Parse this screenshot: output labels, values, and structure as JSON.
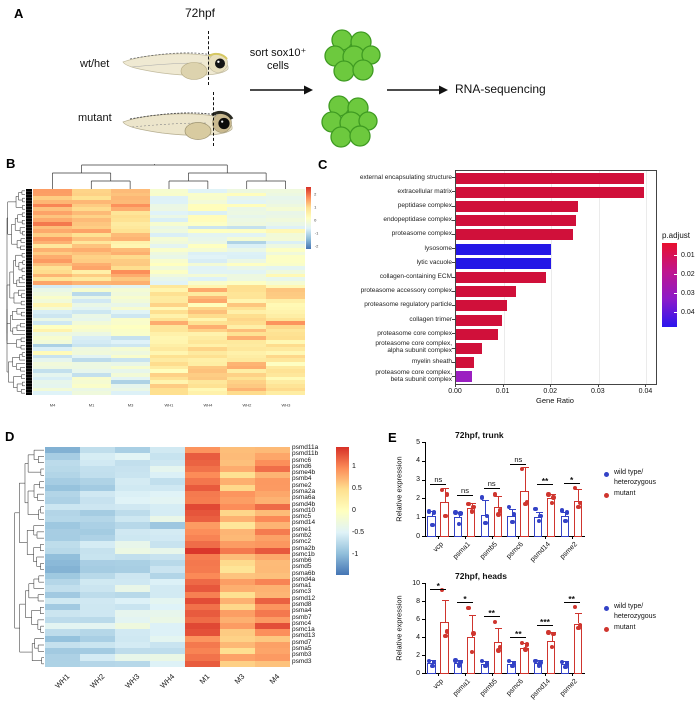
{
  "panelA": {
    "label": "A",
    "timepoint": "72hpf",
    "fish1_label": "wt/het",
    "fish2_label": "mutant",
    "sort_line1": "sort sox10⁺",
    "sort_line2": "cells",
    "rnaseq_label": "RNA-sequencing"
  },
  "panelB": {
    "label": "B",
    "columns": [
      "M4",
      "M1",
      "M3",
      "WH1",
      "WH4",
      "WH2",
      "WH3"
    ],
    "colorbar_ticks": [
      "2",
      "1",
      "0",
      "-1",
      "-2"
    ],
    "tree": [
      [
        0,
        [
          1,
          2
        ]
      ],
      [
        [
          3,
          4
        ],
        [
          5,
          6
        ]
      ]
    ],
    "heatmap": {
      "rows": 56,
      "seed": 11,
      "domain": [
        -2,
        2
      ],
      "blocks": [
        {
          "rows": [
            0,
            25
          ],
          "col_means": [
            0.95,
            0.85,
            0.8,
            -0.35,
            -0.3,
            -0.35,
            -0.3
          ],
          "sd": 0.45
        },
        {
          "rows": [
            26,
            55
          ],
          "col_means": [
            -0.4,
            -0.45,
            -0.4,
            0.5,
            0.6,
            0.55,
            0.5
          ],
          "sd": 0.5
        }
      ]
    }
  },
  "panelC": {
    "label": "C",
    "chart_data": {
      "type": "bar",
      "orientation": "horizontal",
      "title": "",
      "xlabel": "Gene Ratio",
      "categories": [
        "external encapsulating structure",
        "extracellular matrix",
        "peptidase complex",
        "endopeptidase complex",
        "proteasome complex",
        "lysosome",
        "lytic vacuole",
        "collagen-containing ECM",
        "proteasome accessory complex",
        "proteasome regulatory particle",
        "collagen trimer",
        "proteasome core complex",
        "proteasome core complex,\nalpha subunit complex",
        "myelin sheath",
        "proteasome core complex,\nbeta subunit complex"
      ],
      "values": [
        0.0395,
        0.0395,
        0.0256,
        0.0251,
        0.0246,
        0.02,
        0.02,
        0.019,
        0.0125,
        0.0107,
        0.0097,
        0.0088,
        0.0055,
        0.0038,
        0.0033
      ],
      "bar_colors": [
        "red",
        "red",
        "red",
        "red",
        "red",
        "blue",
        "blue",
        "red",
        "red",
        "red",
        "red",
        "red",
        "red",
        "red",
        "purple"
      ],
      "x_ticks": [
        "0.00",
        "0.01",
        "0.02",
        "0.03",
        "0.04"
      ],
      "x_tick_values": [
        0,
        0.01,
        0.02,
        0.03,
        0.04
      ],
      "x_max": 0.042,
      "legend": {
        "title": "p.adjust",
        "ticks": [
          "0.01",
          "0.02",
          "0.03",
          "0.04"
        ]
      }
    }
  },
  "panelD": {
    "label": "D",
    "columns": [
      "WH1",
      "WH2",
      "WH3",
      "WH4",
      "M1",
      "M3",
      "M4"
    ],
    "genes": [
      "psmd11a",
      "psmd11b",
      "psmc6",
      "psmd6",
      "psme4b",
      "psmb4",
      "psme2",
      "psma2a",
      "psma6a",
      "psmd4b",
      "psmd10",
      "psmc5",
      "psmd14",
      "psme1",
      "psmb2",
      "psmc2",
      "psma2b",
      "psmc1b",
      "psmb6",
      "psmd5",
      "psma6b",
      "psmd4a",
      "psma1",
      "psmc3",
      "psmd12",
      "psmd8",
      "psma4",
      "psmb7",
      "psmc4",
      "psmc1a",
      "psmd13",
      "psmd7",
      "psma5",
      "psmb3",
      "psmd3"
    ],
    "colorbar_ticks": [
      "1",
      "0.5",
      "0",
      "-0.5",
      "-1"
    ],
    "heatmap": {
      "rows": 35,
      "seed": 23,
      "domain": [
        -1.6,
        1.6
      ],
      "blocks": [
        {
          "rows": [
            0,
            34
          ],
          "col_means": [
            -0.85,
            -0.75,
            -0.6,
            -0.55,
            1.25,
            0.8,
            1.0
          ],
          "sd": 0.22
        }
      ]
    }
  },
  "panelE": {
    "label": "E",
    "legend": {
      "wt_line1": "wild type/",
      "wt_line2": "heterozygous",
      "mut_label": "mutant"
    },
    "charts": [
      {
        "title": "72hpf, trunk",
        "ylabel": "Relative expression",
        "type": "bar",
        "ylim": [
          0,
          5
        ],
        "yticks": [
          0,
          1,
          2,
          3,
          4,
          5
        ],
        "categories": [
          "vcp",
          "psma1",
          "psmb5",
          "psmc6",
          "psmd14",
          "psme2"
        ],
        "significance": [
          "ns",
          "ns",
          "ns",
          "ns",
          "**",
          "*"
        ],
        "sig_line_val": [
          2.75,
          2.2,
          2.55,
          3.85,
          2.75,
          2.8
        ],
        "series": [
          {
            "name": "wild type/heterozygous",
            "color": "blue",
            "means": [
              1.05,
              1.0,
              1.1,
              1.05,
              1.0,
              1.05
            ],
            "err_top": [
              1.35,
              1.3,
              1.9,
              1.45,
              1.3,
              1.3
            ],
            "dots": [
              [
                1.3,
                1.25,
                0.6
              ],
              [
                1.25,
                1.2,
                0.65
              ],
              [
                2.05,
                1.05,
                0.7
              ],
              [
                1.55,
                1.15,
                0.75
              ],
              [
                1.45,
                1.05,
                0.8
              ],
              [
                1.35,
                1.25,
                0.8
              ]
            ]
          },
          {
            "name": "mutant",
            "color": "red",
            "means": [
              1.8,
              1.5,
              1.55,
              2.4,
              2.0,
              1.85
            ],
            "err_top": [
              2.55,
              1.75,
              2.15,
              3.65,
              2.25,
              2.5
            ],
            "dots": [
              [
                2.45,
                2.2,
                1.05
              ],
              [
                1.7,
                1.55,
                1.3
              ],
              [
                2.2,
                1.35,
                1.15
              ],
              [
                3.55,
                1.8,
                1.7
              ],
              [
                2.2,
                2.05,
                1.75
              ],
              [
                2.55,
                1.75,
                1.55
              ]
            ]
          }
        ]
      },
      {
        "title": "72hpf, heads",
        "ylabel": "Relative expression",
        "type": "bar",
        "ylim": [
          0,
          10
        ],
        "yticks": [
          0,
          2,
          4,
          6,
          8,
          10
        ],
        "categories": [
          "vcp",
          "psma1",
          "psmb5",
          "psmc6",
          "psmd14",
          "psme2"
        ],
        "significance": [
          "*",
          "*",
          "**",
          "**",
          "***",
          "**"
        ],
        "sig_line_val": [
          9.3,
          7.9,
          6.3,
          4.05,
          5.35,
          7.9
        ],
        "series": [
          {
            "name": "wild type/heterozygous",
            "color": "blue",
            "means": [
              1.1,
              1.1,
              1.0,
              1.05,
              1.1,
              1.0
            ],
            "err_top": [
              1.4,
              1.45,
              1.3,
              1.35,
              1.4,
              1.3
            ],
            "dots": [
              [
                1.35,
                1.2,
                0.8
              ],
              [
                1.4,
                1.2,
                0.85
              ],
              [
                1.3,
                1.05,
                0.75
              ],
              [
                1.3,
                1.1,
                0.8
              ],
              [
                1.35,
                1.15,
                0.85
              ],
              [
                1.25,
                1.05,
                0.7
              ]
            ]
          },
          {
            "name": "mutant",
            "color": "red",
            "means": [
              5.7,
              4.0,
              3.5,
              2.8,
              3.6,
              5.5
            ],
            "err_top": [
              8.1,
              6.4,
              5.0,
              3.3,
              4.6,
              6.7
            ],
            "dots": [
              [
                9.2,
                4.6,
                4.1
              ],
              [
                7.2,
                4.4,
                2.3
              ],
              [
                5.7,
                2.9,
                2.5
              ],
              [
                3.3,
                3.15,
                2.6
              ],
              [
                4.5,
                4.3,
                2.9
              ],
              [
                7.3,
                5.3,
                5.0
              ]
            ]
          }
        ]
      }
    ]
  },
  "colors": {
    "accent_blue": "#3342c6",
    "accent_red": "#cf352e",
    "bar_red": "#d0103a",
    "bar_blue": "#2316e6",
    "bar_purple": "#9b1fc1",
    "cell_green": "#6dc93e",
    "cell_green_dark": "#3f9b22",
    "heat_palette": [
      "#4575b4",
      "#91bfdb",
      "#e0f3f8",
      "#ffffbf",
      "#fee090",
      "#fc8d59",
      "#d73027"
    ]
  }
}
